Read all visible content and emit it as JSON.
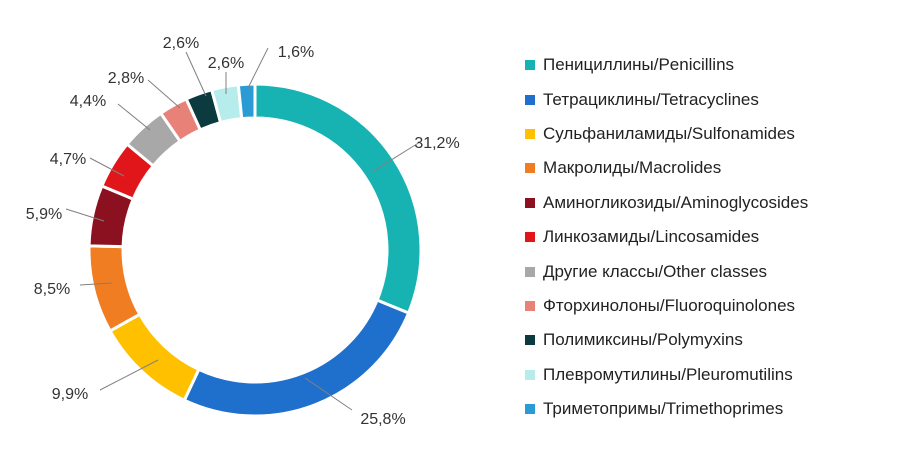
{
  "chart_data": {
    "type": "pie",
    "donut": true,
    "categories": [
      "Пенициллины/Penicillins",
      "Тетрациклины/Tetracyclines",
      "Сульфаниламиды/Sulfonamides",
      "Макролиды/Macrolides",
      "Аминогликозиды/Aminoglycosides",
      "Линкозамиды/Lincosamides",
      "Другие классы/Other classes",
      "Фторхинолоны/Fluoroquinolones",
      "Полимиксины/Polymyxins",
      "Плевромутилины/Pleuromutilins",
      "Триметопримы/Trimethoprimes"
    ],
    "values": [
      31.2,
      25.8,
      9.9,
      8.5,
      5.9,
      4.7,
      4.4,
      2.8,
      2.6,
      2.6,
      1.6
    ],
    "labels": [
      "31,2%",
      "25,8%",
      "9,9%",
      "8,5%",
      "5,9%",
      "4,7%",
      "4,4%",
      "2,8%",
      "2,6%",
      "2,6%",
      "1,6%"
    ],
    "colors": [
      "#17b3b3",
      "#1f6fcc",
      "#ffc000",
      "#f07d22",
      "#8b1020",
      "#e0161b",
      "#a8a8a8",
      "#e88278",
      "#0c3b3f",
      "#b7ecec",
      "#2b9bd6"
    ],
    "legend_position": "right"
  }
}
